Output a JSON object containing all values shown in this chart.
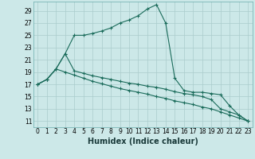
{
  "background_color": "#cce8e8",
  "grid_color": "#aacccc",
  "line_color": "#1a6b5a",
  "xlabel": "Humidex (Indice chaleur)",
  "xlabel_fontsize": 7,
  "tick_fontsize": 5.5,
  "xlim": [
    -0.5,
    23.5
  ],
  "ylim": [
    10,
    30.5
  ],
  "yticks": [
    11,
    13,
    15,
    17,
    19,
    21,
    23,
    25,
    27,
    29
  ],
  "xticks": [
    0,
    1,
    2,
    3,
    4,
    5,
    6,
    7,
    8,
    9,
    10,
    11,
    12,
    13,
    14,
    15,
    16,
    17,
    18,
    19,
    20,
    21,
    22,
    23
  ],
  "curve1_x": [
    0,
    1,
    2,
    3,
    4,
    5,
    6,
    7,
    8,
    9,
    10,
    11,
    12,
    13,
    14,
    15,
    16,
    17,
    18,
    19,
    20,
    21,
    22,
    23
  ],
  "curve1_y": [
    17.0,
    17.8,
    19.5,
    22.0,
    25.0,
    25.0,
    25.3,
    25.7,
    26.2,
    27.0,
    27.5,
    28.2,
    29.3,
    30.0,
    27.0,
    18.0,
    16.0,
    15.7,
    15.7,
    15.5,
    15.3,
    13.5,
    12.0,
    11.0
  ],
  "curve2_x": [
    0,
    1,
    2,
    3,
    4,
    5,
    6,
    7,
    8,
    9,
    10,
    11,
    12,
    13,
    14,
    15,
    16,
    17,
    18,
    19,
    20,
    21,
    22,
    23
  ],
  "curve2_y": [
    17.0,
    17.8,
    19.5,
    22.0,
    19.2,
    18.8,
    18.4,
    18.1,
    17.8,
    17.5,
    17.2,
    17.0,
    16.7,
    16.5,
    16.2,
    15.8,
    15.5,
    15.3,
    15.0,
    14.5,
    13.0,
    12.5,
    12.0,
    11.0
  ],
  "curve3_x": [
    0,
    1,
    2,
    3,
    4,
    5,
    6,
    7,
    8,
    9,
    10,
    11,
    12,
    13,
    14,
    15,
    16,
    17,
    18,
    19,
    20,
    21,
    22,
    23
  ],
  "curve3_y": [
    17.0,
    17.8,
    19.5,
    19.0,
    18.5,
    18.0,
    17.5,
    17.1,
    16.7,
    16.3,
    16.0,
    15.7,
    15.4,
    15.0,
    14.7,
    14.3,
    14.0,
    13.7,
    13.3,
    13.0,
    12.5,
    12.0,
    11.5,
    11.0
  ]
}
